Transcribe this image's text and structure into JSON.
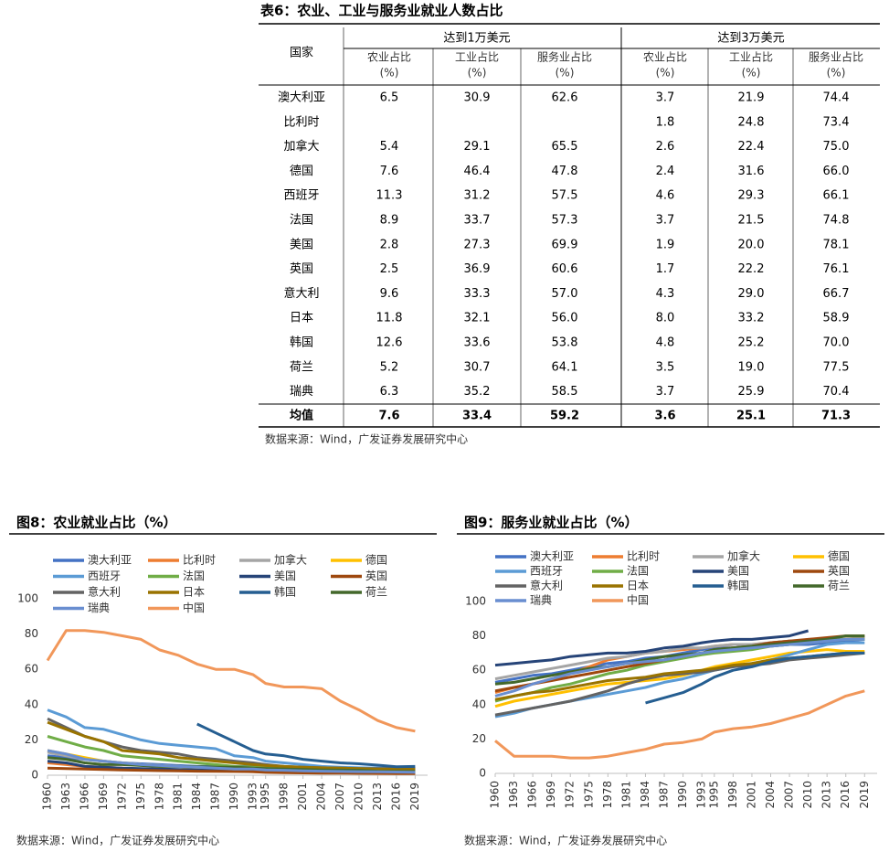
{
  "table": {
    "title": "表6：农业、工业与服务业就业人数占比",
    "country_header": "国家",
    "groups": [
      "达到1万美元",
      "达到3万美元"
    ],
    "columns": [
      [
        "农业占比",
        "(%)"
      ],
      [
        "工业占比",
        "(%)"
      ],
      [
        "服务业占比",
        "(%)"
      ],
      [
        "农业占比",
        "(%)"
      ],
      [
        "工业占比",
        "(%)"
      ],
      [
        "服务业占比",
        "(%)"
      ]
    ],
    "rows": [
      [
        "澳大利亚",
        "6.5",
        "30.9",
        "62.6",
        "3.7",
        "21.9",
        "74.4"
      ],
      [
        "比利时",
        null,
        null,
        null,
        "1.8",
        "24.8",
        "73.4"
      ],
      [
        "加拿大",
        "5.4",
        "29.1",
        "65.5",
        "2.6",
        "22.4",
        "75.0"
      ],
      [
        "德国",
        "7.6",
        "46.4",
        "47.8",
        "2.4",
        "31.6",
        "66.0"
      ],
      [
        "西班牙",
        "11.3",
        "31.2",
        "57.5",
        "4.6",
        "29.3",
        "66.1"
      ],
      [
        "法国",
        "8.9",
        "33.7",
        "57.3",
        "3.7",
        "21.5",
        "74.8"
      ],
      [
        "美国",
        "2.8",
        "27.3",
        "69.9",
        "1.9",
        "20.0",
        "78.1"
      ],
      [
        "英国",
        "2.5",
        "36.9",
        "60.6",
        "1.7",
        "22.2",
        "76.1"
      ],
      [
        "意大利",
        "9.6",
        "33.3",
        "57.0",
        "4.3",
        "29.0",
        "66.7"
      ],
      [
        "日本",
        "11.8",
        "32.1",
        "56.0",
        "8.0",
        "33.2",
        "58.9"
      ],
      [
        "韩国",
        "12.6",
        "33.6",
        "53.8",
        "4.8",
        "25.2",
        "70.0"
      ],
      [
        "荷兰",
        "5.2",
        "30.7",
        "64.1",
        "3.5",
        "19.0",
        "77.5"
      ],
      [
        "瑞典",
        "6.3",
        "35.2",
        "58.5",
        "3.7",
        "25.9",
        "70.4"
      ],
      [
        "均值",
        "7.6",
        "33.4",
        "59.2",
        "3.6",
        "25.1",
        "71.3"
      ]
    ],
    "source": "数据来源：Wind，广发证券发展研究中心"
  },
  "chart_data": [
    {
      "type": "line",
      "title": "图8：农业就业占比（%）",
      "source": "数据来源：Wind，广发证券发展研究中心",
      "x": [
        1960,
        1963,
        1966,
        1969,
        1972,
        1975,
        1978,
        1981,
        1984,
        1987,
        1990,
        1993,
        1995,
        1998,
        2001,
        2004,
        2007,
        2010,
        2013,
        2016,
        2019
      ],
      "xlim": [
        1960,
        2021
      ],
      "xticks": [
        1960,
        1963,
        1966,
        1969,
        1972,
        1975,
        1978,
        1981,
        1984,
        1987,
        1990,
        1993,
        1995,
        1998,
        2001,
        2004,
        2007,
        2010,
        2013,
        2016,
        2019
      ],
      "ylim": [
        0,
        100
      ],
      "yticks": [
        0,
        20,
        40,
        60,
        80,
        100
      ],
      "series": [
        {
          "name": "澳大利亚",
          "color": "#4472c4",
          "values": [
            11,
            10,
            9,
            8,
            7,
            6.5,
            6,
            5.5,
            5,
            5,
            5,
            5,
            4.5,
            4,
            3.5,
            3,
            3,
            3,
            2.7,
            2.6,
            2.6
          ]
        },
        {
          "name": "比利时",
          "color": "#ed7d31",
          "values": [
            7,
            6,
            5,
            4.5,
            4,
            3.5,
            3,
            3,
            2.8,
            2.5,
            2.3,
            2,
            1.8,
            1.6,
            1.5,
            1.4,
            1.3,
            1.2,
            1,
            1,
            1
          ]
        },
        {
          "name": "加拿大",
          "color": "#a5a5a5",
          "values": [
            13,
            11,
            9,
            8,
            7,
            6,
            5.5,
            5,
            4.5,
            4,
            3.8,
            3.5,
            3,
            2.8,
            2.5,
            2.3,
            2,
            1.8,
            1.6,
            1.5,
            1.5
          ]
        },
        {
          "name": "德国",
          "color": "#ffc000",
          "values": [
            14,
            12,
            10,
            8,
            7,
            6,
            5.5,
            5,
            4,
            3.5,
            3,
            2.8,
            2.5,
            2.3,
            2,
            1.8,
            1.6,
            1.5,
            1.3,
            1.2,
            1.2
          ]
        },
        {
          "name": "西班牙",
          "color": "#5b9bd5",
          "values": [
            37,
            33,
            27,
            26,
            23,
            20,
            18,
            17,
            16,
            15,
            11,
            10,
            8,
            7,
            6,
            5,
            4.5,
            4.2,
            4.1,
            4,
            3.9
          ]
        },
        {
          "name": "法国",
          "color": "#70ad47",
          "values": [
            22,
            19,
            16,
            14,
            11,
            10,
            9,
            8,
            7,
            6,
            5,
            4.5,
            4,
            3.8,
            3.5,
            3,
            2.9,
            2.7,
            2.5,
            2.5,
            2.4
          ]
        },
        {
          "name": "美国",
          "color": "#264478",
          "values": [
            8,
            7,
            5,
            4.5,
            4,
            3.8,
            3.5,
            3.2,
            3,
            2.8,
            2.7,
            2.6,
            2.5,
            2,
            1.8,
            1.6,
            1.5,
            1.5,
            1.4,
            1.4,
            1.4
          ]
        },
        {
          "name": "英国",
          "color": "#9e480e",
          "values": [
            4,
            3.8,
            3.5,
            3.2,
            3,
            2.8,
            2.6,
            2.5,
            2.3,
            2.2,
            2.1,
            2,
            1.6,
            1.4,
            1.3,
            1.2,
            1.2,
            1.1,
            1.1,
            1,
            1
          ]
        },
        {
          "name": "意大利",
          "color": "#636363",
          "values": [
            32,
            27,
            22,
            19,
            16,
            14,
            13,
            12,
            10,
            9,
            8,
            7,
            6,
            5,
            4.5,
            4.2,
            4,
            3.8,
            3.8,
            3.8,
            3.8
          ]
        },
        {
          "name": "日本",
          "color": "#997300",
          "values": [
            30,
            26,
            22,
            19,
            14,
            13,
            12,
            10,
            9,
            8,
            7,
            6,
            5.5,
            5,
            4.5,
            4.2,
            4,
            3.8,
            3.5,
            3.4,
            3.3
          ]
        },
        {
          "name": "韩国",
          "color": "#255e91",
          "values": [
            null,
            null,
            null,
            null,
            null,
            null,
            null,
            null,
            29,
            24,
            19,
            14,
            12,
            11,
            9,
            8,
            7,
            6.5,
            5.7,
            4.8,
            5
          ]
        },
        {
          "name": "荷兰",
          "color": "#43682b",
          "values": [
            10,
            9,
            7,
            6,
            6,
            5.5,
            5,
            5,
            4.8,
            4.5,
            4.5,
            4,
            3.8,
            3.5,
            3.2,
            3,
            2.9,
            2.8,
            2.3,
            2.2,
            2.1
          ]
        },
        {
          "name": "瑞典",
          "color": "#698ed0",
          "values": [
            14,
            12,
            9,
            8,
            7,
            6,
            5.5,
            5,
            4.5,
            4,
            3.5,
            3.5,
            3,
            2.8,
            2.5,
            2.3,
            2.1,
            2,
            1.9,
            1.8,
            1.7
          ]
        },
        {
          "name": "中国",
          "color": "#f1975a",
          "values": [
            65,
            82,
            82,
            81,
            79,
            77,
            71,
            68,
            63,
            60,
            60,
            57,
            52,
            50,
            50,
            49,
            42,
            37,
            31,
            27,
            25
          ]
        }
      ]
    },
    {
      "type": "line",
      "title": "图9：服务业就业占比（%）",
      "source": "数据来源：Wind，广发证券发展研究中心",
      "x": [
        1960,
        1963,
        1966,
        1969,
        1972,
        1975,
        1978,
        1981,
        1984,
        1987,
        1990,
        1993,
        1995,
        1998,
        2001,
        2004,
        2007,
        2010,
        2013,
        2016,
        2019
      ],
      "xlim": [
        1960,
        2021
      ],
      "xticks": [
        1960,
        1963,
        1966,
        1969,
        1972,
        1975,
        1978,
        1981,
        1984,
        1987,
        1990,
        1993,
        1995,
        1998,
        2001,
        2004,
        2007,
        2010,
        2013,
        2016,
        2019
      ],
      "ylim": [
        0,
        100
      ],
      "yticks": [
        0,
        20,
        40,
        60,
        80,
        100
      ],
      "series": [
        {
          "name": "澳大利亚",
          "color": "#4472c4",
          "values": [
            53,
            55,
            57,
            58,
            60,
            62,
            64,
            65,
            67,
            68,
            70,
            72,
            73,
            73,
            74,
            74,
            75,
            75,
            76,
            77,
            78
          ]
        },
        {
          "name": "比利时",
          "color": "#ed7d31",
          "values": [
            47,
            50,
            52,
            55,
            58,
            62,
            66,
            68,
            70,
            71,
            72,
            73,
            74,
            75,
            75,
            76,
            77,
            77,
            78,
            78,
            79
          ]
        },
        {
          "name": "加拿大",
          "color": "#a5a5a5",
          "values": [
            55,
            57,
            59,
            61,
            63,
            65,
            67,
            68,
            70,
            71,
            73,
            73,
            74,
            75,
            75,
            76,
            77,
            77,
            78,
            78,
            79
          ]
        },
        {
          "name": "德国",
          "color": "#ffc000",
          "values": [
            39,
            42,
            44,
            46,
            48,
            50,
            52,
            53,
            54,
            55,
            57,
            60,
            62,
            64,
            66,
            68,
            70,
            71,
            72,
            71,
            71
          ]
        },
        {
          "name": "西班牙",
          "color": "#5b9bd5",
          "values": [
            33,
            35,
            38,
            40,
            42,
            44,
            46,
            48,
            50,
            53,
            55,
            58,
            60,
            62,
            64,
            66,
            69,
            72,
            75,
            76,
            76
          ]
        },
        {
          "name": "法国",
          "color": "#70ad47",
          "values": [
            42,
            45,
            47,
            50,
            52,
            55,
            58,
            60,
            63,
            65,
            67,
            69,
            70,
            71,
            72,
            74,
            75,
            76,
            77,
            78,
            78
          ]
        },
        {
          "name": "美国",
          "color": "#264478",
          "values": [
            63,
            64,
            65,
            66,
            68,
            69,
            70,
            70,
            71,
            73,
            74,
            76,
            77,
            78,
            78,
            79,
            80,
            83,
            null,
            null,
            null
          ]
        },
        {
          "name": "英国",
          "color": "#9e480e",
          "values": [
            48,
            50,
            52,
            54,
            56,
            58,
            60,
            62,
            64,
            66,
            68,
            70,
            72,
            73,
            74,
            76,
            77,
            78,
            79,
            80,
            80
          ]
        },
        {
          "name": "意大利",
          "color": "#636363",
          "values": [
            34,
            36,
            38,
            40,
            42,
            45,
            48,
            52,
            55,
            57,
            58,
            59,
            60,
            62,
            63,
            64,
            66,
            67,
            68,
            69,
            70
          ]
        },
        {
          "name": "日本",
          "color": "#997300",
          "values": [
            43,
            45,
            47,
            48,
            50,
            52,
            54,
            55,
            56,
            58,
            59,
            60,
            61,
            63,
            64,
            66,
            67,
            68,
            69,
            70,
            70
          ]
        },
        {
          "name": "韩国",
          "color": "#255e91",
          "values": [
            null,
            null,
            null,
            null,
            null,
            null,
            null,
            null,
            41,
            44,
            47,
            52,
            56,
            60,
            62,
            65,
            67,
            68,
            69,
            70,
            70
          ]
        },
        {
          "name": "荷兰",
          "color": "#43682b",
          "values": [
            52,
            53,
            55,
            57,
            59,
            61,
            62,
            64,
            66,
            68,
            69,
            70,
            72,
            73,
            74,
            75,
            76,
            77,
            78,
            80,
            80
          ]
        },
        {
          "name": "瑞典",
          "color": "#698ed0",
          "values": [
            45,
            48,
            52,
            55,
            58,
            60,
            62,
            64,
            65,
            66,
            68,
            70,
            71,
            72,
            73,
            74,
            75,
            76,
            77,
            78,
            78
          ]
        },
        {
          "name": "中国",
          "color": "#f1975a",
          "values": [
            19,
            10,
            10,
            10,
            9,
            9,
            10,
            12,
            14,
            17,
            18,
            20,
            24,
            26,
            27,
            29,
            32,
            35,
            40,
            45,
            48
          ]
        }
      ]
    }
  ]
}
